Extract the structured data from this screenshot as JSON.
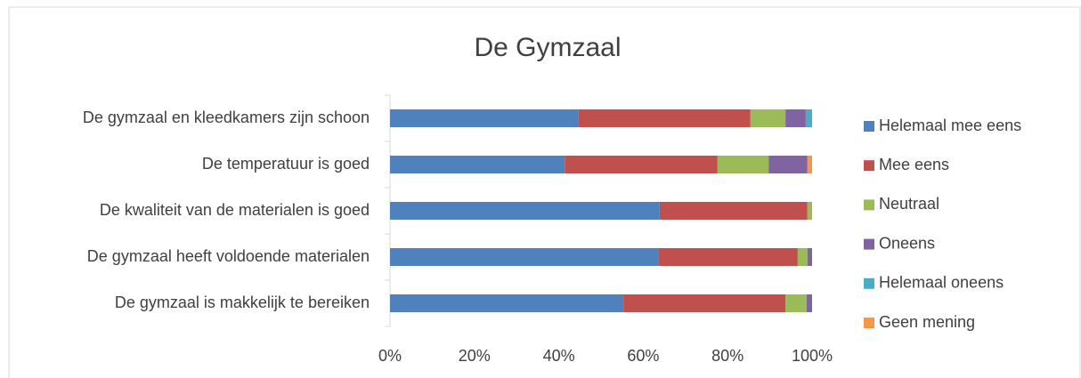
{
  "chart_data": {
    "type": "stacked_bar_horizontal",
    "title": "De Gymzaal",
    "categories": [
      "De gymzaal en kleedkamers zijn schoon",
      "De temperatuur is goed",
      "De kwaliteit van de materialen is goed",
      "De gymzaal heeft voldoende materialen",
      "De gymzaal is makkelijk te bereiken"
    ],
    "series": [
      {
        "name": "Helemaal mee eens",
        "color": "#4f81bd",
        "values": [
          44.7,
          41.4,
          63.9,
          63.7,
          55.3
        ]
      },
      {
        "name": "Mee eens",
        "color": "#c0504d",
        "values": [
          40.7,
          36.2,
          35.0,
          32.9,
          38.4
        ]
      },
      {
        "name": "Neutraal",
        "color": "#9bbb59",
        "values": [
          8.3,
          12.1,
          1.1,
          2.3,
          5.0
        ]
      },
      {
        "name": "Oneens",
        "color": "#8064a2",
        "values": [
          4.8,
          9.2,
          0,
          1.1,
          1.3
        ]
      },
      {
        "name": "Helemaal oneens",
        "color": "#4bacc6",
        "values": [
          1.5,
          0,
          0,
          0,
          0
        ]
      },
      {
        "name": "Geen mening",
        "color": "#f79646",
        "values": [
          0,
          1.1,
          0,
          0,
          0
        ]
      }
    ],
    "xlim": [
      0,
      100
    ],
    "xticks": [
      {
        "value": 0,
        "label": "0%"
      },
      {
        "value": 20,
        "label": "20%"
      },
      {
        "value": 40,
        "label": "40%"
      },
      {
        "value": 60,
        "label": "60%"
      },
      {
        "value": 80,
        "label": "80%"
      },
      {
        "value": 100,
        "label": "100%"
      }
    ],
    "grid": false,
    "legend": "right"
  }
}
